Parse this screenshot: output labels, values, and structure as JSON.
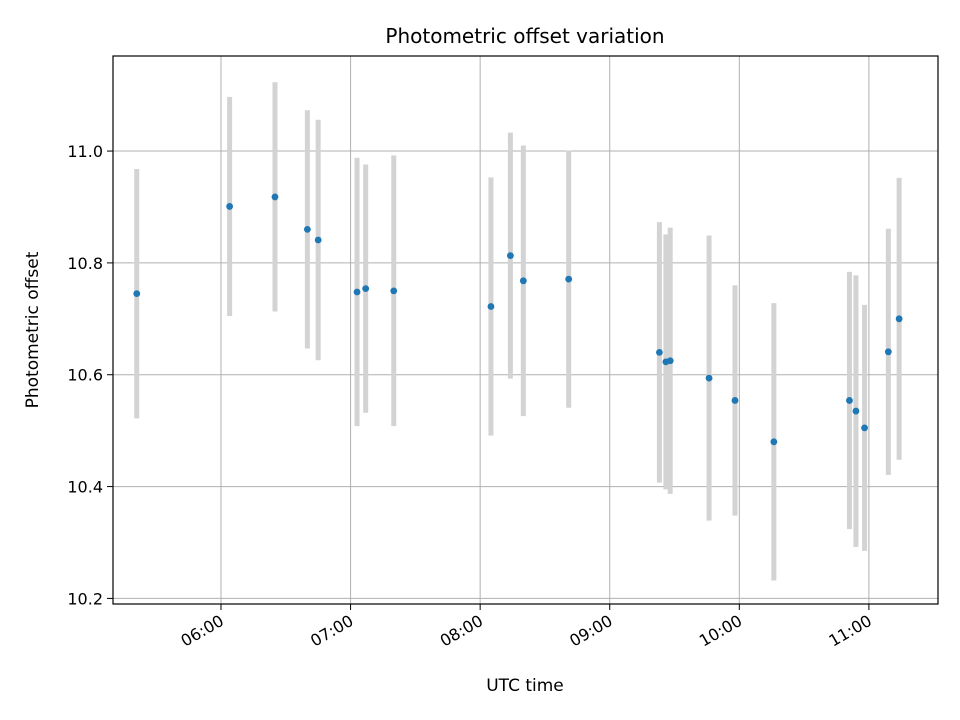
{
  "chart_data": {
    "type": "scatter",
    "title": "Photometric offset variation",
    "xlabel": "UTC time",
    "ylabel": "Photometric offset",
    "grid": true,
    "x_ticks": [
      "06:00",
      "07:00",
      "08:00",
      "09:00",
      "10:00",
      "11:00"
    ],
    "y_ticks": [
      "10.2",
      "10.4",
      "10.6",
      "10.8",
      "11.0"
    ],
    "xlim": [
      "05:10",
      "11:32"
    ],
    "ylim": [
      10.19,
      11.17
    ],
    "point_color": "#1f77b4",
    "errorbar_color": "#d3d3d3",
    "points": [
      {
        "x": "05:21",
        "y": 10.745,
        "err": 0.223
      },
      {
        "x": "06:04",
        "y": 10.901,
        "err": 0.196
      },
      {
        "x": "06:25",
        "y": 10.918,
        "err": 0.205
      },
      {
        "x": "06:40",
        "y": 10.86,
        "err": 0.213
      },
      {
        "x": "06:45",
        "y": 10.841,
        "err": 0.215
      },
      {
        "x": "07:03",
        "y": 10.748,
        "err": 0.24
      },
      {
        "x": "07:07",
        "y": 10.754,
        "err": 0.222
      },
      {
        "x": "07:20",
        "y": 10.75,
        "err": 0.242
      },
      {
        "x": "08:05",
        "y": 10.722,
        "err": 0.231
      },
      {
        "x": "08:14",
        "y": 10.813,
        "err": 0.22
      },
      {
        "x": "08:20",
        "y": 10.768,
        "err": 0.242
      },
      {
        "x": "08:41",
        "y": 10.771,
        "err": 0.23
      },
      {
        "x": "09:23",
        "y": 10.64,
        "err": 0.233
      },
      {
        "x": "09:26",
        "y": 10.623,
        "err": 0.228
      },
      {
        "x": "09:28",
        "y": 10.625,
        "err": 0.238
      },
      {
        "x": "09:46",
        "y": 10.594,
        "err": 0.255
      },
      {
        "x": "09:58",
        "y": 10.554,
        "err": 0.206
      },
      {
        "x": "10:16",
        "y": 10.48,
        "err": 0.248
      },
      {
        "x": "10:51",
        "y": 10.554,
        "err": 0.23
      },
      {
        "x": "10:54",
        "y": 10.535,
        "err": 0.243
      },
      {
        "x": "10:58",
        "y": 10.505,
        "err": 0.22
      },
      {
        "x": "11:09",
        "y": 10.641,
        "err": 0.22
      },
      {
        "x": "11:14",
        "y": 10.7,
        "err": 0.252
      }
    ]
  }
}
